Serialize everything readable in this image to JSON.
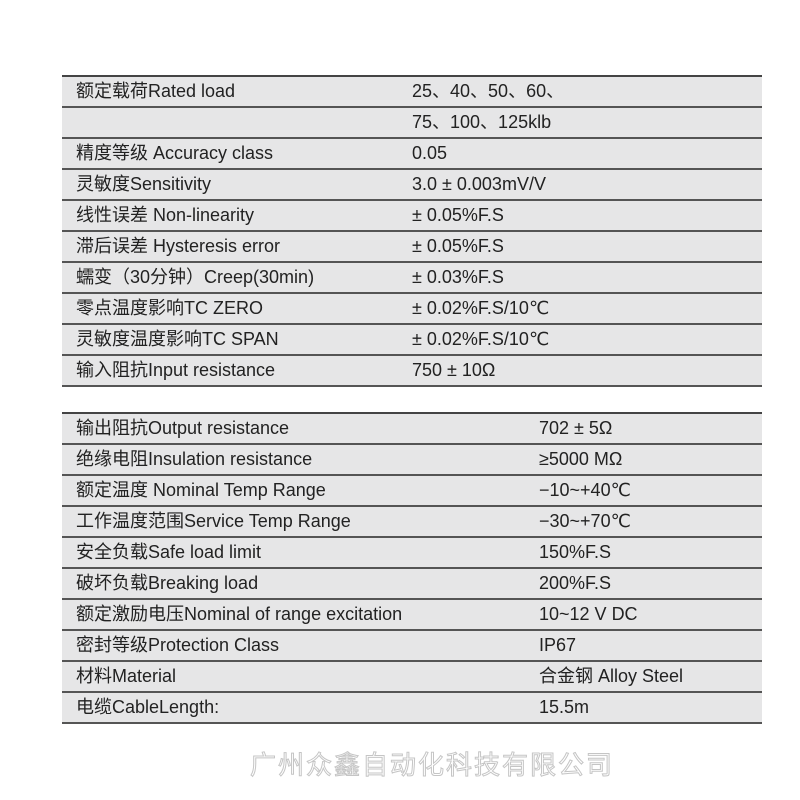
{
  "table1": [
    {
      "k": "额定载荷Rated load",
      "v": "25、40、50、60、"
    },
    {
      "k": "",
      "v": "75、100、125klb"
    },
    {
      "k": "精度等级 Accuracy class",
      "v": "0.05"
    },
    {
      "k": "灵敏度Sensitivity",
      "v": "3.0 ± 0.003mV/V"
    },
    {
      "k": "线性误差 Non-linearity",
      "v": "± 0.05%F.S"
    },
    {
      "k": "滞后误差 Hysteresis error",
      "v": "± 0.05%F.S"
    },
    {
      "k": "蠕变（30分钟）Creep(30min)",
      "v": "± 0.03%F.S"
    },
    {
      "k": "零点温度影响TC ZERO",
      "v": "± 0.02%F.S/10℃"
    },
    {
      "k": "灵敏度温度影响TC SPAN",
      "v": "± 0.02%F.S/10℃"
    },
    {
      "k": "输入阻抗Input resistance",
      "v": "750 ± 10Ω"
    }
  ],
  "table2": [
    {
      "k": "输出阻抗Output resistance",
      "v": "702 ± 5Ω"
    },
    {
      "k": "绝缘电阻Insulation resistance",
      "v": "≥5000 MΩ"
    },
    {
      "k": "额定温度 Nominal Temp Range",
      "v": "−10~+40℃"
    },
    {
      "k": "工作温度范围Service Temp Range",
      "v": "−30~+70℃"
    },
    {
      "k": "安全负载Safe load limit",
      "v": "150%F.S"
    },
    {
      "k": "破坏负载Breaking load",
      "v": "200%F.S"
    },
    {
      "k": "额定激励电压Nominal of range excitation",
      "v": "10~12 V DC"
    },
    {
      "k": "密封等级Protection Class",
      "v": "IP67"
    },
    {
      "k": "材料Material",
      "v": "合金钢 Alloy Steel"
    },
    {
      "k": "电缆CableLength:",
      "v": "15.5m"
    }
  ],
  "watermark": "广州众鑫自动化科技有限公司"
}
